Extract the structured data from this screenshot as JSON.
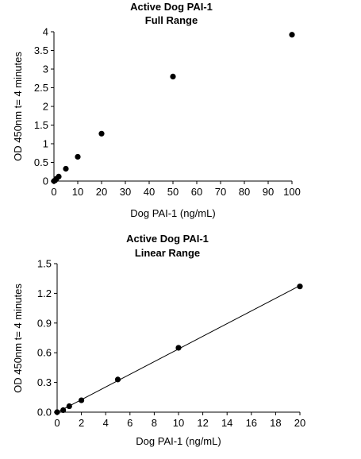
{
  "chart_data": [
    {
      "type": "scatter",
      "title": "Active Dog PAI-1",
      "subtitle": "Full Range",
      "xlabel": "Dog PAI-1 (ng/mL)",
      "ylabel": "OD 450nm t= 4 minutes",
      "xlim": [
        0,
        100
      ],
      "ylim": [
        0,
        4
      ],
      "x_ticks": [
        "0",
        "10",
        "20",
        "30",
        "40",
        "50",
        "60",
        "70",
        "80",
        "90",
        "100"
      ],
      "y_ticks": [
        "0",
        "0.5",
        "1",
        "1.5",
        "2",
        "2.5",
        "3",
        "3.5",
        "4"
      ],
      "grid": false,
      "trendline": false,
      "colors": {
        "marker": "#000000",
        "axis": "#000000"
      },
      "series": [
        {
          "points": [
            {
              "x": 0,
              "y": 0.0
            },
            {
              "x": 0.5,
              "y": 0.02
            },
            {
              "x": 1,
              "y": 0.06
            },
            {
              "x": 2,
              "y": 0.12
            },
            {
              "x": 5,
              "y": 0.33
            },
            {
              "x": 10,
              "y": 0.65
            },
            {
              "x": 20,
              "y": 1.27
            },
            {
              "x": 50,
              "y": 2.8
            },
            {
              "x": 100,
              "y": 3.92
            }
          ]
        }
      ]
    },
    {
      "type": "scatter",
      "title": "Active Dog PAI-1",
      "subtitle": "Linear Range",
      "xlabel": "Dog PAI-1 (ng/mL)",
      "ylabel": "OD 450nm t= 4 minutes",
      "xlim": [
        0,
        20
      ],
      "ylim": [
        0,
        1.5
      ],
      "x_ticks": [
        "0",
        "2",
        "4",
        "6",
        "8",
        "10",
        "12",
        "14",
        "16",
        "18",
        "20"
      ],
      "y_ticks": [
        "0.0",
        "0.3",
        "0.6",
        "0.9",
        "1.2",
        "1.5"
      ],
      "grid": false,
      "trendline": true,
      "colors": {
        "marker": "#000000",
        "axis": "#000000"
      },
      "series": [
        {
          "points": [
            {
              "x": 0,
              "y": 0.0
            },
            {
              "x": 0.5,
              "y": 0.02
            },
            {
              "x": 1,
              "y": 0.06
            },
            {
              "x": 2,
              "y": 0.12
            },
            {
              "x": 5,
              "y": 0.33
            },
            {
              "x": 10,
              "y": 0.65
            },
            {
              "x": 20,
              "y": 1.27
            }
          ]
        }
      ]
    }
  ]
}
